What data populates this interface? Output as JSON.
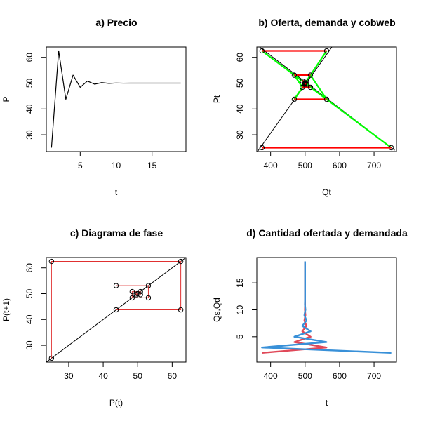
{
  "chart_data": [
    {
      "type": "line",
      "title": "a) Precio",
      "xlabel": "t",
      "ylabel": "P",
      "xlim": [
        0.28,
        19.72
      ],
      "ylim": [
        23.5,
        64.0
      ],
      "xticks": [
        5,
        10,
        15
      ],
      "yticks": [
        30,
        40,
        50,
        60
      ],
      "x": [
        1,
        2,
        3,
        4,
        5,
        6,
        7,
        8,
        9,
        10,
        11,
        12,
        13,
        14,
        15,
        16,
        17,
        18,
        19
      ],
      "series": [
        {
          "values": [
            25.0,
            62.5,
            43.75,
            53.1,
            48.4,
            50.8,
            49.6,
            50.2,
            49.9,
            50.05,
            49.98,
            50.0,
            50.0,
            50.0,
            50.0,
            50.0,
            50.0,
            50.0,
            50.0
          ],
          "color": "#000000"
        }
      ]
    },
    {
      "type": "line",
      "title": "b) Oferta, demanda y cobweb",
      "xlabel": "Qt",
      "ylabel": "Pt",
      "xlim": [
        360,
        765
      ],
      "ylim": [
        23.5,
        64.0
      ],
      "xticks": [
        400,
        500,
        600,
        700
      ],
      "yticks": [
        30,
        40,
        50,
        60
      ],
      "lines": [
        {
          "name": "oferta",
          "color": "#000000",
          "points": [
            [
              350,
              21.25
            ],
            [
              580,
              64.4
            ]
          ]
        },
        {
          "name": "demanda",
          "color": "#000000",
          "points": [
            [
              355,
              65.3
            ],
            [
              760,
              24.0
            ]
          ]
        }
      ],
      "cobweb": {
        "horizontal_color": "#ff0000",
        "vertical_color": "#00ff00",
        "horizontal": [
          [
            375,
            750,
            25.0
          ],
          [
            375,
            562.5,
            62.5
          ],
          [
            468.75,
            562.5,
            43.75
          ],
          [
            468.75,
            515.6,
            53.1
          ],
          [
            492.2,
            515.6,
            48.4
          ],
          [
            492.2,
            504,
            50.8
          ],
          [
            498,
            504,
            49.6
          ]
        ],
        "vertical": [
          [
            [
              750,
              25.0
            ],
            [
              375,
              62.5
            ]
          ],
          [
            [
              562.5,
              62.5
            ],
            [
              468.75,
              43.75
            ]
          ],
          [
            [
              562.5,
              43.75
            ],
            [
              515.6,
              53.1
            ]
          ],
          [
            [
              468.75,
              53.1
            ],
            [
              492.2,
              48.4
            ]
          ],
          [
            [
              515.6,
              48.4
            ],
            [
              504,
              50.8
            ]
          ]
        ]
      },
      "points": [
        [
          375,
          25.0
        ],
        [
          750,
          25.0
        ],
        [
          375,
          62.5
        ],
        [
          562.5,
          62.5
        ],
        [
          468.75,
          43.75
        ],
        [
          562.5,
          43.75
        ],
        [
          468.75,
          53.1
        ],
        [
          515.6,
          53.1
        ],
        [
          492.2,
          48.4
        ],
        [
          515.6,
          48.4
        ],
        [
          504,
          50.8
        ],
        [
          492.2,
          50.8
        ],
        [
          498,
          49.6
        ],
        [
          504,
          49.6
        ],
        [
          500,
          50
        ],
        [
          501,
          50.2
        ],
        [
          499,
          49.8
        ]
      ]
    },
    {
      "type": "line",
      "title": "c) Diagrama de fase",
      "xlabel": "P(t)",
      "ylabel": "P(t+1)",
      "xlim": [
        23.5,
        64.0
      ],
      "ylim": [
        23.5,
        64.0
      ],
      "xticks": [
        30,
        40,
        50,
        60
      ],
      "yticks": [
        30,
        40,
        50,
        60
      ],
      "diagonal": {
        "color": "#000000",
        "points": [
          [
            22.5,
            22.5
          ],
          [
            66,
            66
          ]
        ]
      },
      "path_color": "#e03030",
      "path": [
        [
          25.0,
          25.0
        ],
        [
          25.0,
          62.5
        ],
        [
          62.5,
          62.5
        ],
        [
          62.5,
          43.75
        ],
        [
          43.75,
          43.75
        ],
        [
          43.75,
          53.1
        ],
        [
          53.1,
          53.1
        ],
        [
          53.1,
          48.4
        ],
        [
          48.4,
          48.4
        ],
        [
          48.4,
          50.8
        ],
        [
          50.8,
          50.8
        ],
        [
          50.8,
          49.6
        ],
        [
          49.6,
          49.6
        ],
        [
          49.6,
          50.2
        ],
        [
          50.2,
          50.2
        ]
      ],
      "points": [
        [
          25.0,
          25.0
        ],
        [
          25.0,
          62.5
        ],
        [
          62.5,
          62.5
        ],
        [
          62.5,
          43.75
        ],
        [
          43.75,
          43.75
        ],
        [
          43.75,
          53.1
        ],
        [
          53.1,
          53.1
        ],
        [
          53.1,
          48.4
        ],
        [
          48.4,
          48.4
        ],
        [
          48.4,
          50.8
        ],
        [
          50.8,
          50.8
        ],
        [
          50.8,
          49.6
        ],
        [
          49.6,
          49.6
        ],
        [
          50,
          50
        ]
      ]
    },
    {
      "type": "line",
      "title": "d) Cantidad ofertada y demandada",
      "xlabel": "t",
      "ylabel": "Qs,Qd",
      "xlim": [
        360,
        765
      ],
      "ylim": [
        0.28,
        19.72
      ],
      "xticks": [
        400,
        500,
        600,
        700
      ],
      "yticks": [
        5,
        10,
        15
      ],
      "series": [
        {
          "name": "Qs",
          "color": "#e04858",
          "points": [
            [
              375,
              2
            ],
            [
              562,
              3
            ],
            [
              469,
              4
            ],
            [
              516,
              5
            ],
            [
              492,
              6
            ],
            [
              504,
              7
            ],
            [
              498,
              8
            ],
            [
              501,
              9
            ],
            [
              499.6,
              10
            ],
            [
              500,
              11
            ],
            [
              500,
              12
            ],
            [
              500,
              13
            ],
            [
              500,
              14
            ],
            [
              500,
              15
            ],
            [
              500,
              16
            ],
            [
              500,
              17
            ],
            [
              500,
              18
            ],
            [
              500,
              19
            ]
          ]
        },
        {
          "name": "Qd",
          "color": "#3890d8",
          "points": [
            [
              750,
              2
            ],
            [
              375,
              3
            ],
            [
              562,
              4
            ],
            [
              469,
              5
            ],
            [
              516,
              6
            ],
            [
              492,
              7
            ],
            [
              504,
              8
            ],
            [
              498,
              9
            ],
            [
              501,
              10
            ],
            [
              499.6,
              11
            ],
            [
              500,
              12
            ],
            [
              500,
              13
            ],
            [
              500,
              14
            ],
            [
              500,
              15
            ],
            [
              500,
              16
            ],
            [
              500,
              17
            ],
            [
              500,
              18
            ],
            [
              500,
              19
            ]
          ]
        }
      ]
    }
  ]
}
